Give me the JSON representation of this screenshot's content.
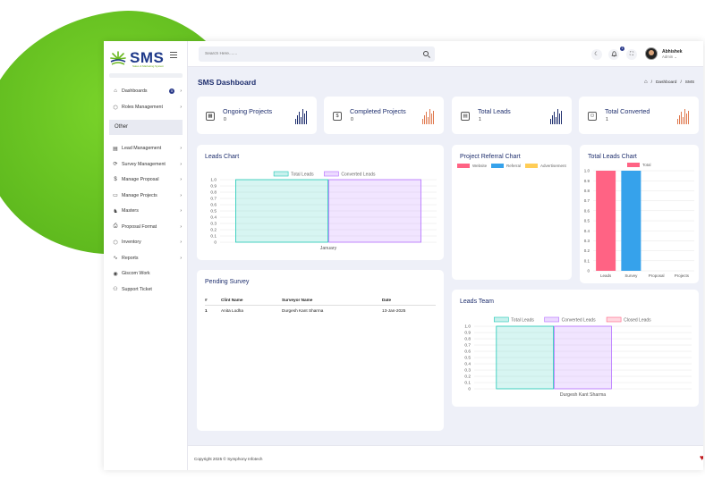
{
  "brand": {
    "name": "SMS",
    "tagline": "Sales & Marketing System",
    "accent": "#2a3a8a",
    "green": "#6ab81f"
  },
  "sidebar": {
    "items_top": [
      {
        "icon": "dashboard-icon",
        "glyph": "⌂",
        "label": "Dashboards",
        "badge": "5",
        "chevron": "›"
      },
      {
        "icon": "roles-icon",
        "glyph": "⬡",
        "label": "Roles Management",
        "chevron": "›"
      }
    ],
    "section_label": "Other",
    "items": [
      {
        "icon": "document-icon",
        "glyph": "▤",
        "label": "Lead Management",
        "chevron": "›"
      },
      {
        "icon": "refresh-icon",
        "glyph": "⟳",
        "label": "Survey Management",
        "chevron": "›"
      },
      {
        "icon": "dollar-icon",
        "glyph": "$",
        "label": "Manage Proposal",
        "chevron": "›"
      },
      {
        "icon": "server-icon",
        "glyph": "▭",
        "label": "Manage Projects",
        "chevron": "›"
      },
      {
        "icon": "masters-icon",
        "glyph": "♞",
        "label": "Masters",
        "chevron": "›"
      },
      {
        "icon": "printer-icon",
        "glyph": "⎙",
        "label": "Proposal Format",
        "chevron": "›"
      },
      {
        "icon": "inventory-icon",
        "glyph": "⬡",
        "label": "Inventory",
        "chevron": "›"
      },
      {
        "icon": "reports-icon",
        "glyph": "∿",
        "label": "Reports",
        "chevron": "›"
      },
      {
        "icon": "globe-icon",
        "glyph": "◉",
        "label": "Giscom Work"
      },
      {
        "icon": "support-icon",
        "glyph": "⚇",
        "label": "Support Ticket"
      }
    ]
  },
  "topbar": {
    "search_placeholder": "Search Here.......",
    "notif_count": "1",
    "user_name": "Abhishek",
    "user_role": "Admin ⌄",
    "theme_glyph": "☾",
    "bell_glyph": "🔔",
    "fullscreen_glyph": "⛶"
  },
  "page": {
    "title": "SMS Dashboard",
    "breadcrumb": [
      "Dashboard",
      "SMS"
    ],
    "home_glyph": "⌂",
    "sep": "/"
  },
  "stats": [
    {
      "icon": "calendar-icon",
      "glyph": "▦",
      "title": "Ongoing Projects",
      "value": "0",
      "color": "#1f2f6e"
    },
    {
      "icon": "dollar-icon",
      "glyph": "$",
      "title": "Completed Projects",
      "value": "0",
      "color": "#e07a50"
    },
    {
      "icon": "file-icon",
      "glyph": "▤",
      "title": "Total Leads",
      "value": "1",
      "color": "#1f2f6e"
    },
    {
      "icon": "users-icon",
      "glyph": "⚇",
      "title": "Total Converted",
      "value": "1",
      "color": "#e07a50"
    }
  ],
  "leads_chart": {
    "title": "Leads Chart",
    "chart_data": {
      "type": "bar",
      "categories": [
        "January"
      ],
      "series": [
        {
          "name": "Total Leads",
          "values": [
            1
          ],
          "color": "#20c9b6"
        },
        {
          "name": "Converted Leads",
          "values": [
            1
          ],
          "color": "#b46dff"
        }
      ],
      "yticks": [
        "0",
        "0.1",
        "0.2",
        "0.3",
        "0.4",
        "0.5",
        "0.6",
        "0.7",
        "0.8",
        "0.9",
        "1.0"
      ],
      "ylim": [
        0,
        1
      ],
      "legend": "top"
    }
  },
  "referral_chart": {
    "title": "Project Referral Chart",
    "chart_data": {
      "type": "pie",
      "legend": [
        {
          "name": "Website",
          "color": "#ff6384"
        },
        {
          "name": "Referral",
          "color": "#36a2eb"
        },
        {
          "name": "Advertisement",
          "color": "#ffcd56"
        }
      ]
    }
  },
  "total_leads_chart": {
    "title": "Total Leads Chart",
    "chart_data": {
      "type": "bar",
      "categories": [
        "Leads",
        "Survey",
        "Proposal",
        "Projects"
      ],
      "series": [
        {
          "name": "Total",
          "values": [
            1,
            1,
            0,
            0
          ],
          "colors": [
            "#ff6384",
            "#36a2eb",
            "#ffcd56",
            "#4bc0c0"
          ]
        }
      ],
      "yticks": [
        "0",
        "0.1",
        "0.2",
        "0.3",
        "0.4",
        "0.5",
        "0.6",
        "0.7",
        "0.8",
        "0.9",
        "1.0"
      ],
      "ylim": [
        0,
        1
      ],
      "legend": "top"
    }
  },
  "pending_survey": {
    "title": "Pending Survey",
    "columns": [
      "#",
      "Clint Name",
      "Surveyor Name",
      "Date"
    ],
    "rows": [
      [
        "1",
        "Anita Lodha",
        "Durgesh Kant Sharma",
        "13-Jan-2025"
      ]
    ]
  },
  "leads_team": {
    "title": "Leads Team",
    "chart_data": {
      "type": "bar",
      "categories": [
        "Durgesh Kant Sharma"
      ],
      "series": [
        {
          "name": "Total Leads",
          "values": [
            1
          ],
          "color": "#20c9b6"
        },
        {
          "name": "Converted Leads",
          "values": [
            1
          ],
          "color": "#b46dff"
        },
        {
          "name": "Closed Leads",
          "values": [
            0
          ],
          "color": "#ff6384"
        }
      ],
      "yticks": [
        "0",
        "0.1",
        "0.2",
        "0.3",
        "0.4",
        "0.5",
        "0.6",
        "0.7",
        "0.8",
        "0.9",
        "1.0"
      ],
      "ylim": [
        0,
        1
      ],
      "legend": "top"
    }
  },
  "footer": {
    "copyright": "Copyright 2025 © Symphony Infotech"
  }
}
